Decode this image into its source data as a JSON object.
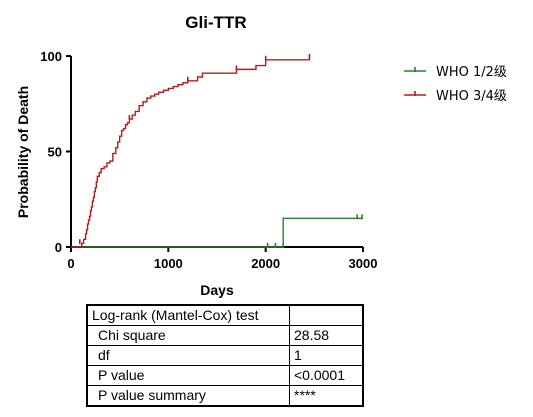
{
  "chart_data": {
    "type": "line",
    "step": true,
    "title": "Gli-TTR",
    "xlabel": "Days",
    "ylabel": "Probability of Death",
    "xlim": [
      0,
      3000
    ],
    "ylim": [
      0,
      100
    ],
    "xticks": [
      0,
      1000,
      2000,
      3000
    ],
    "yticks": [
      0,
      50,
      100
    ],
    "legend_position": "top-right",
    "series": [
      {
        "name": "WHO 1/2级",
        "color": "#2e7d32",
        "x": [
          0,
          2180,
          3000
        ],
        "y": [
          0,
          15,
          15
        ],
        "censored": [
          [
            2020,
            0
          ],
          [
            2100,
            0
          ],
          [
            2180,
            0
          ],
          [
            2940,
            15
          ],
          [
            2990,
            15
          ]
        ]
      },
      {
        "name": "WHO 3/4级",
        "color": "#b71c1c",
        "x": [
          0,
          110,
          130,
          150,
          160,
          170,
          180,
          190,
          200,
          210,
          220,
          230,
          240,
          250,
          260,
          270,
          290,
          310,
          340,
          370,
          400,
          430,
          460,
          480,
          500,
          520,
          540,
          560,
          580,
          600,
          630,
          660,
          700,
          740,
          780,
          820,
          860,
          900,
          950,
          1000,
          1050,
          1100,
          1150,
          1200,
          1300,
          1350,
          1700,
          1900,
          2000,
          2450
        ],
        "y": [
          0,
          2,
          4,
          7,
          9,
          12,
          14,
          16,
          19,
          21,
          24,
          26,
          29,
          31,
          34,
          37,
          39,
          41,
          42,
          44,
          45,
          49,
          52,
          55,
          58,
          61,
          62,
          64,
          65,
          67,
          69,
          71,
          74,
          76,
          78,
          79,
          80,
          81,
          82,
          83,
          84,
          85,
          86,
          87,
          89,
          91,
          93,
          95,
          98,
          99
        ],
        "censored": [
          [
            90,
            2
          ],
          [
            600,
            67
          ],
          [
            1200,
            87
          ],
          [
            1700,
            93
          ],
          [
            2000,
            98
          ],
          [
            2450,
            99
          ]
        ]
      }
    ],
    "table": {
      "header": [
        "Log-rank (Mantel-Cox) test",
        ""
      ],
      "rows": [
        [
          "Chi square",
          "28.58"
        ],
        [
          "df",
          "1"
        ],
        [
          "P value",
          "<0.0001"
        ],
        [
          "P value summary",
          "****"
        ]
      ]
    }
  }
}
